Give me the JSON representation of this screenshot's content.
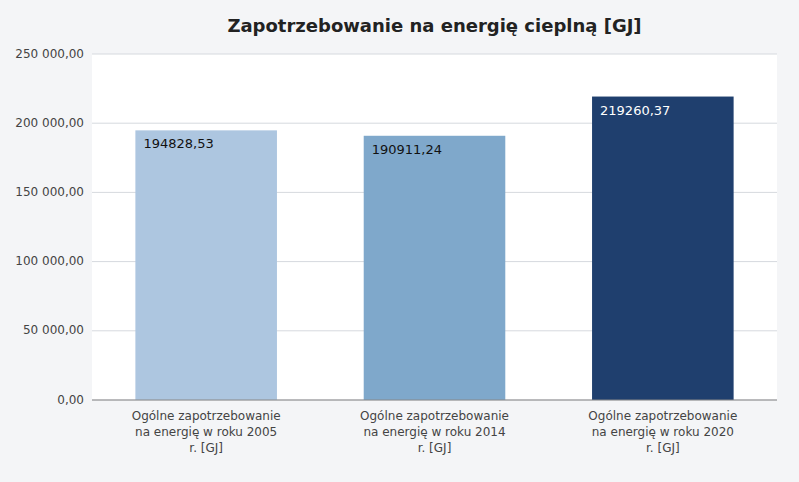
{
  "chart_data": {
    "type": "bar",
    "title": "Zapotrzebowanie na energię cieplną [GJ]",
    "categories": [
      "Ogólne zapotrzebowanie\nna energię w roku 2005\nr. [GJ]",
      "Ogólne zapotrzebowanie\nna energię w roku 2014\nr. [GJ]",
      "Ogólne zapotrzebowanie\nna energię w roku 2020\nr. [GJ]"
    ],
    "values": [
      194828.53,
      190911.24,
      219260.37
    ],
    "value_labels": [
      "194828,53",
      "190911,24",
      "219260,37"
    ],
    "data_labels": true,
    "colors": [
      "#adc6e0",
      "#7fa8cb",
      "#1f3f6e"
    ],
    "ylim": [
      0,
      250000
    ],
    "yticks": [
      {
        "value": 0,
        "label": "0,00"
      },
      {
        "value": 50000,
        "label": "50 000,00"
      },
      {
        "value": 100000,
        "label": "100 000,00"
      },
      {
        "value": 150000,
        "label": "150 000,00"
      },
      {
        "value": 200000,
        "label": "200 000,00"
      },
      {
        "value": 250000,
        "label": "250 000,00"
      }
    ],
    "grid": true
  }
}
